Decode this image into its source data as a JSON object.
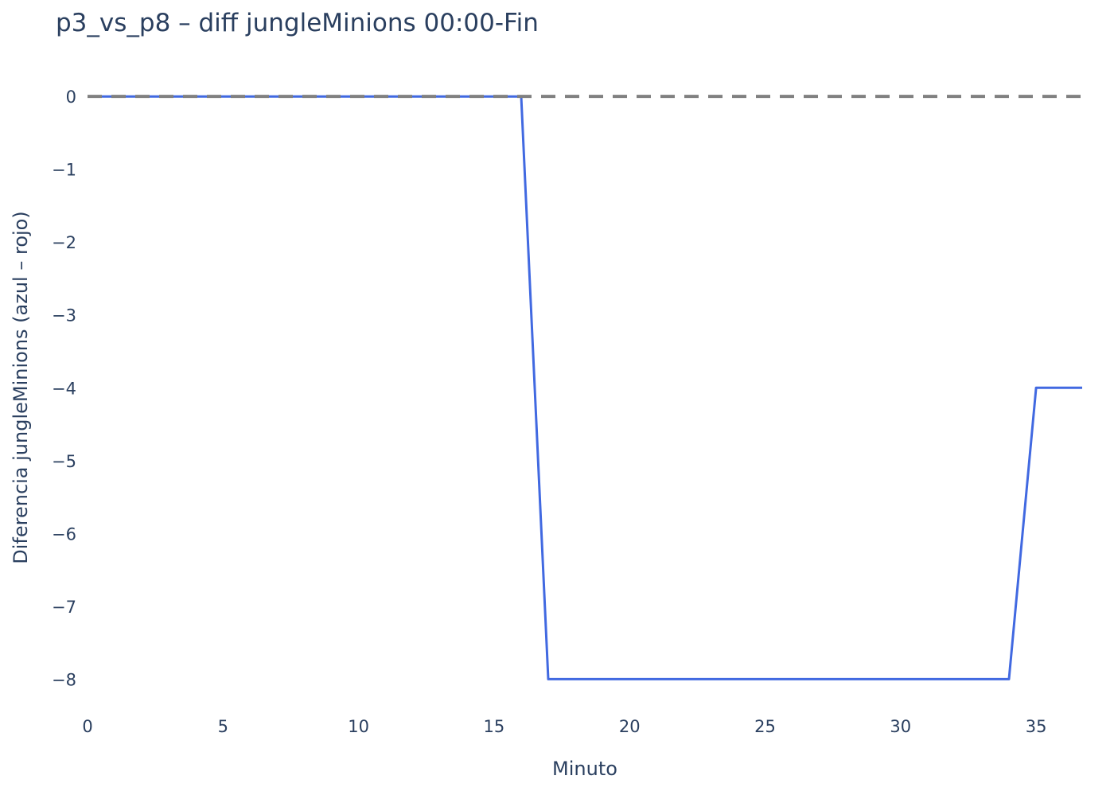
{
  "chart_data": {
    "type": "line",
    "title": "p3_vs_p8 – diff jungleMinions 00:00-Fin",
    "xlabel": "Minuto",
    "ylabel": "Diferencia jungleMinions (azul – rojo)",
    "xlim": [
      0,
      36.7
    ],
    "ylim": [
      -8.4,
      0.1
    ],
    "x_ticks": [
      0,
      5,
      10,
      15,
      20,
      25,
      30,
      35
    ],
    "x_tick_labels": [
      "0",
      "5",
      "10",
      "15",
      "20",
      "25",
      "30",
      "35"
    ],
    "y_ticks": [
      0,
      -1,
      -2,
      -3,
      -4,
      -5,
      -6,
      -7,
      -8
    ],
    "y_tick_labels": [
      "0",
      "−1",
      "−2",
      "−3",
      "−4",
      "−5",
      "−6",
      "−7",
      "−8"
    ],
    "grid": false,
    "legend": "none",
    "reference_line": {
      "y": 0,
      "style": "dashed",
      "color": "#808080"
    },
    "series": [
      {
        "color": "#4169e1",
        "x": [
          0,
          1,
          2,
          3,
          4,
          5,
          6,
          7,
          8,
          9,
          10,
          11,
          12,
          13,
          14,
          15,
          16,
          17,
          18,
          19,
          20,
          21,
          22,
          23,
          24,
          25,
          26,
          27,
          28,
          29,
          30,
          31,
          32,
          33,
          34,
          35,
          36,
          36.7
        ],
        "y": [
          0,
          0,
          0,
          0,
          0,
          0,
          0,
          0,
          0,
          0,
          0,
          0,
          0,
          0,
          0,
          0,
          0,
          -8,
          -8,
          -8,
          -8,
          -8,
          -8,
          -8,
          -8,
          -8,
          -8,
          -8,
          -8,
          -8,
          -8,
          -8,
          -8,
          -8,
          -8,
          -4,
          -4,
          -4
        ]
      }
    ]
  }
}
